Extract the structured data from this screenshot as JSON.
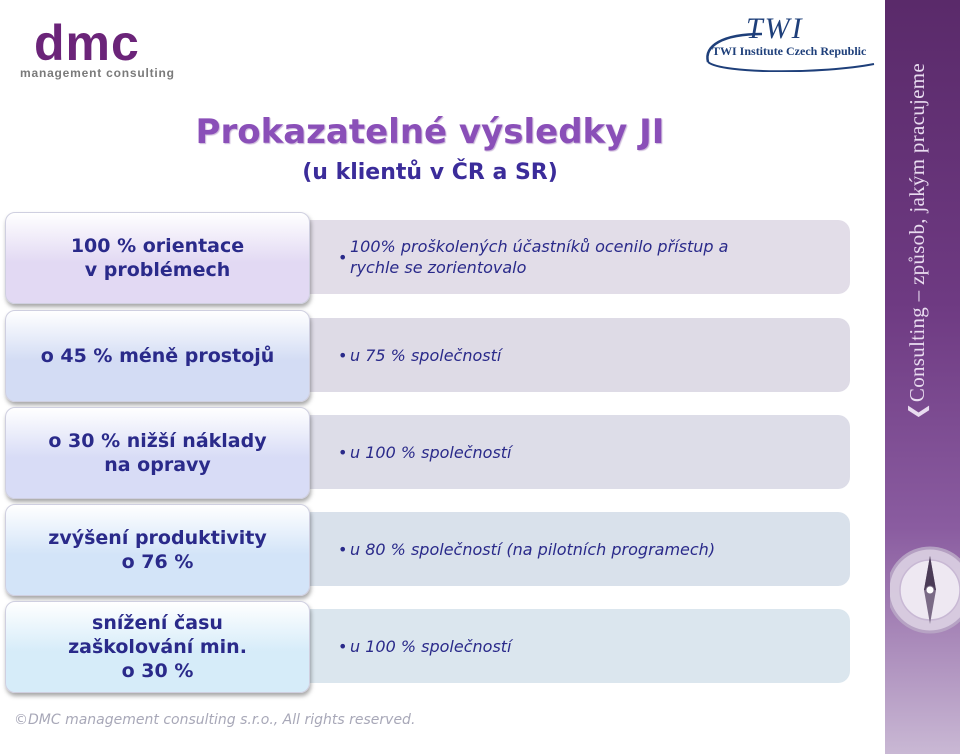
{
  "logos": {
    "dmc": {
      "word": "dmc",
      "subtitle": "management consulting"
    },
    "twi": {
      "word": "TWI",
      "subtitle": "TWI Institute Czech Republic"
    }
  },
  "side_banner": {
    "text": "❮Consulting – způsob, jakým pracujeme"
  },
  "heading": {
    "title": "Prokazatelné výsledky JI",
    "subtitle": "(u klientů v ČR a SR)"
  },
  "rows": [
    {
      "label": "100 % orientace\nv problémech",
      "value": "100% proškolených účastníků ocenilo přístup a\nrychle se zorientovalo"
    },
    {
      "label": "o 45 % méně prostojů",
      "value": "u 75 % společností"
    },
    {
      "label": "o 30 % nižší náklady\nna opravy",
      "value": "u 100 % společností"
    },
    {
      "label": "zvýšení produktivity\no 76 %",
      "value": "u 80 % společností (na pilotních programech)"
    },
    {
      "label": "snížení času\nzaškolování min.\no 30 %",
      "value": "u 100 % společností"
    }
  ],
  "bullet_glyph": "•",
  "footer": "©DMC management consulting s.r.o., All rights reserved.",
  "colors": {
    "title": "#8a4fb8",
    "subtitle": "#3b2c9a",
    "text": "#2a2a8a",
    "row_label_bg": [
      "#e2d9f3",
      "#d3dcf4",
      "#d8dcf6",
      "#d3e4f8",
      "#d6ecf9"
    ],
    "row_value_bg": [
      "#e2dde8",
      "#dedbe6",
      "#dddde8",
      "#d9e1eb",
      "#dbe6ee"
    ]
  }
}
